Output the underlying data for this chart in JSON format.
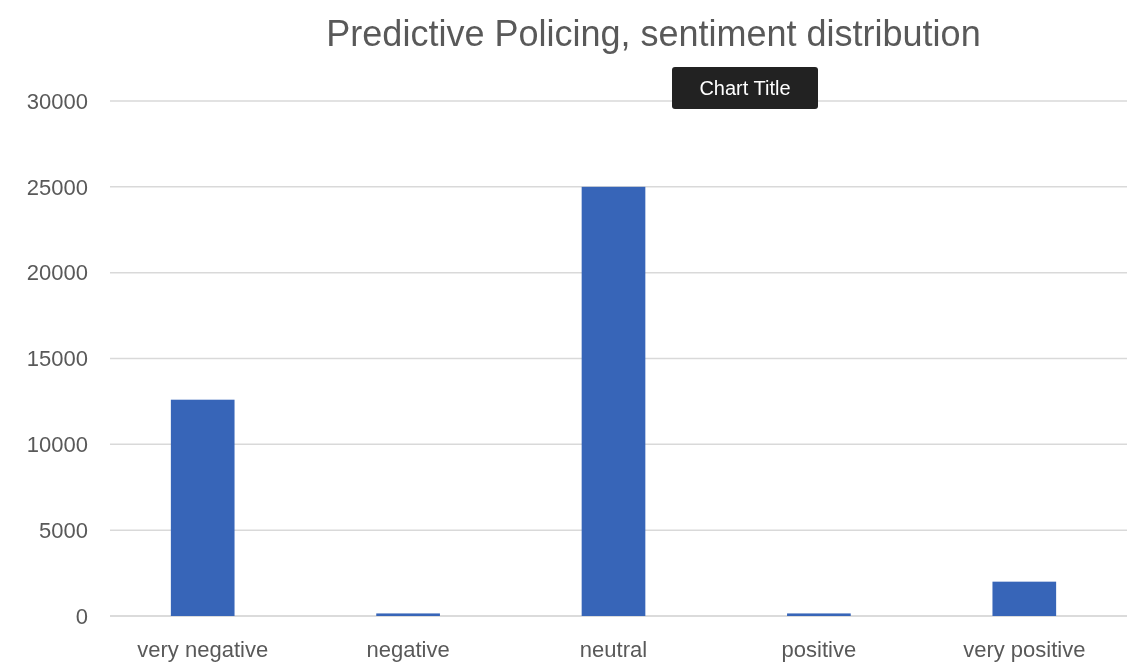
{
  "chart_data": {
    "type": "bar",
    "title": "Predictive Policing, sentiment distribution",
    "categories": [
      "very negative",
      "negative",
      "neutral",
      "positive",
      "very positive"
    ],
    "values": [
      12600,
      150,
      25000,
      150,
      2000
    ],
    "color": "#3765b8",
    "ylim": [
      0,
      30000
    ],
    "yticks": [
      0,
      5000,
      10000,
      15000,
      20000,
      25000,
      30000
    ],
    "grid": "y",
    "annotations": [
      "Chart Title"
    ]
  }
}
